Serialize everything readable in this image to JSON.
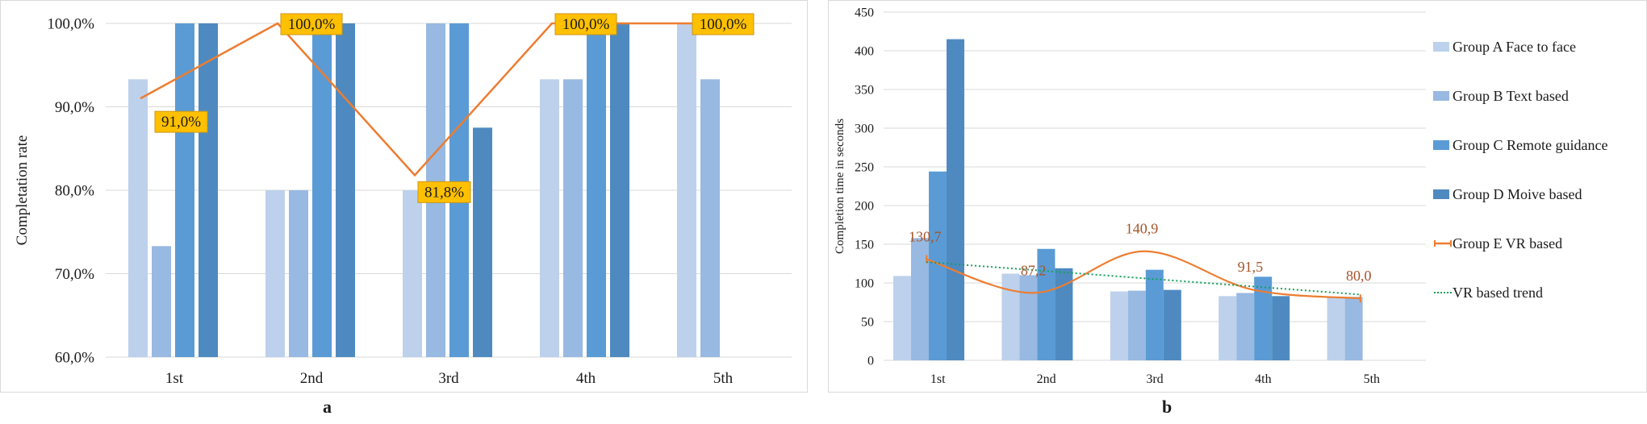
{
  "chart_data": [
    {
      "id": "a",
      "type": "bar",
      "panel_label": "a",
      "ylabel": "Completation rate",
      "xlabel": "",
      "ylim": [
        60,
        100
      ],
      "yticks": [
        "60,0%",
        "70,0%",
        "80,0%",
        "90,0%",
        "100,0%"
      ],
      "ytick_values": [
        60,
        70,
        80,
        90,
        100
      ],
      "categories": [
        "1st",
        "2nd",
        "3rd",
        "4th",
        "5th"
      ],
      "series": [
        {
          "name": "Group A Face to face",
          "values": [
            93.3,
            80.0,
            80.0,
            93.3,
            100.0
          ],
          "color": "#bdd1ec"
        },
        {
          "name": "Group B Text based",
          "values": [
            73.3,
            80.0,
            100.0,
            93.3,
            93.3
          ],
          "color": "#98b9e1"
        },
        {
          "name": "Group C Remote guidance",
          "values": [
            100.0,
            100.0,
            100.0,
            100.0,
            null
          ],
          "color": "#5a9bd5"
        },
        {
          "name": "Group D Moive based",
          "values": [
            100.0,
            100.0,
            87.5,
            100.0,
            null
          ],
          "color": "#4e8ac0"
        }
      ],
      "line": {
        "name": "Group E VR based",
        "values": [
          91.0,
          100.0,
          81.8,
          100.0,
          100.0
        ],
        "labels": [
          "91,0%",
          "100,0%",
          "81,8%",
          "100,0%",
          "100,0%"
        ],
        "color": "#ed7d31",
        "label_bg": "#ffc000"
      }
    },
    {
      "id": "b",
      "type": "bar",
      "panel_label": "b",
      "ylabel": "Completion time in seconds",
      "xlabel": "",
      "ylim": [
        0,
        450
      ],
      "yticks": [
        "0",
        "50",
        "100",
        "150",
        "200",
        "250",
        "300",
        "350",
        "400",
        "450"
      ],
      "ytick_values": [
        0,
        50,
        100,
        150,
        200,
        250,
        300,
        350,
        400,
        450
      ],
      "categories": [
        "1st",
        "2nd",
        "3rd",
        "4th",
        "5th"
      ],
      "series": [
        {
          "name": "Group A Face to face",
          "values": [
            109,
            112,
            89,
            83,
            82
          ],
          "color": "#bdd1ec"
        },
        {
          "name": "Group B Text based",
          "values": [
            158,
            110,
            90,
            87,
            82
          ],
          "color": "#98b9e1"
        },
        {
          "name": "Group C Remote guidance",
          "values": [
            244,
            144,
            117,
            108,
            null
          ],
          "color": "#5a9bd5"
        },
        {
          "name": "Group D Moive based",
          "values": [
            415,
            119,
            91,
            83,
            null
          ],
          "color": "#4e8ac0"
        }
      ],
      "line": {
        "name": "Group E VR based",
        "values": [
          130.7,
          87.2,
          140.9,
          91.5,
          80.0
        ],
        "labels": [
          "130,7",
          "87,2",
          "140,9",
          "91,5",
          "80,0"
        ],
        "color": "#ed7d31",
        "label_color": "#a5542a"
      },
      "trend": {
        "name": "VR based trend",
        "start": 127,
        "end": 85,
        "color": "#13a05a"
      },
      "legend_position": "right"
    }
  ]
}
